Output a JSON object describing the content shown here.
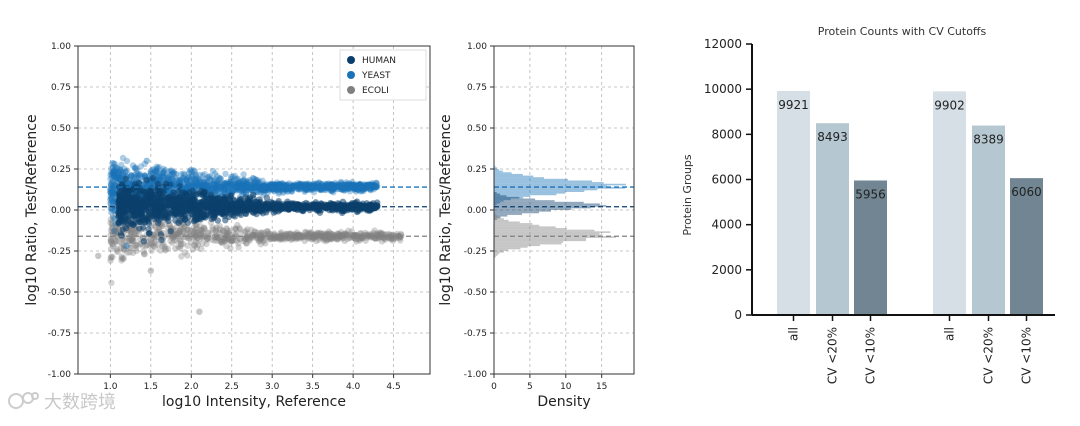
{
  "chart_data": [
    {
      "type": "scatter",
      "title": "",
      "xlabel": "log10 Intensity, Reference",
      "ylabel": "log10 Ratio, Test/Reference",
      "xlim": [
        0.6,
        4.95
      ],
      "ylim": [
        -1.0,
        1.0
      ],
      "xticks": [
        "1.0",
        "1.5",
        "2.0",
        "2.5",
        "3.0",
        "3.5",
        "4.0",
        "4.5"
      ],
      "yticks": [
        "1.00",
        "0.75",
        "0.50",
        "0.25",
        "0.00",
        "-0.25",
        "-0.50",
        "-0.75",
        "-1.00"
      ],
      "grid": true,
      "legend_position": "top-right",
      "series": [
        {
          "name": "HUMAN",
          "color": "#0b3f6b",
          "center_y": 0.02,
          "x_range": [
            1.1,
            4.3
          ]
        },
        {
          "name": "YEAST",
          "color": "#1a73b8",
          "center_y": 0.14,
          "x_range": [
            1.0,
            4.3
          ]
        },
        {
          "name": "ECOLI",
          "color": "#808080",
          "center_y": -0.16,
          "x_range": [
            1.0,
            4.6
          ]
        }
      ],
      "reference_lines": [
        {
          "y": 0.14,
          "color": "#1a73b8",
          "style": "dashed"
        },
        {
          "y": 0.02,
          "color": "#0b3f6b",
          "style": "dashed"
        },
        {
          "y": -0.16,
          "color": "#808080",
          "style": "dashed"
        }
      ]
    },
    {
      "type": "histogram",
      "title": "",
      "xlabel": "Density",
      "ylabel": "log10 Ratio, Test/Reference",
      "xlim": [
        0,
        19.5
      ],
      "ylim": [
        -1.0,
        1.0
      ],
      "xticks": [
        "0",
        "5",
        "10",
        "15"
      ],
      "yticks": [
        "1.00",
        "0.75",
        "0.50",
        "0.25",
        "0.00",
        "-0.25",
        "-0.50",
        "-0.75",
        "-1.00"
      ],
      "grid": true,
      "series": [
        {
          "name": "YEAST",
          "color": "#1a73b8",
          "center_y": 0.14,
          "peak_density": 17
        },
        {
          "name": "HUMAN",
          "color": "#0b3f6b",
          "center_y": 0.02,
          "peak_density": 14
        },
        {
          "name": "ECOLI",
          "color": "#808080",
          "center_y": -0.16,
          "peak_density": 16
        }
      ]
    },
    {
      "type": "bar",
      "title": "Protein Counts with CV Cutoffs",
      "xlabel": "",
      "ylabel": "Protein Groups",
      "ylim": [
        0,
        12000
      ],
      "yticks": [
        "0",
        "2000",
        "4000",
        "6000",
        "8000",
        "10000",
        "12000"
      ],
      "categories": [
        "all",
        "CV <20%",
        "CV <10%",
        "all",
        "CV <20%",
        "CV <10%"
      ],
      "values": [
        9921,
        8493,
        5956,
        9902,
        8389,
        6060
      ],
      "bar_colors": [
        "#d5dfe5",
        "#b5c8d1",
        "#718692",
        "#d5dfe5",
        "#b5c8d1",
        "#718692"
      ],
      "grid": false
    }
  ],
  "watermark": {
    "text": "大数跨境",
    "color": "#c8c8c8"
  }
}
